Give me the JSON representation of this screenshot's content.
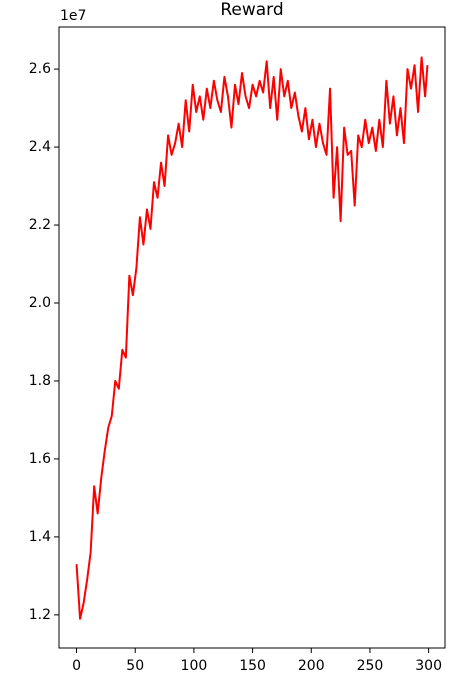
{
  "chart_data": {
    "type": "line",
    "title": "Reward",
    "y_offset_label": "1e7",
    "color": "#ff0000",
    "x": [
      0,
      3,
      6,
      9,
      12,
      15,
      18,
      21,
      24,
      27,
      30,
      33,
      36,
      39,
      42,
      45,
      48,
      51,
      54,
      57,
      60,
      63,
      66,
      69,
      72,
      75,
      78,
      81,
      84,
      87,
      90,
      93,
      96,
      99,
      102,
      105,
      108,
      111,
      114,
      117,
      120,
      123,
      126,
      129,
      132,
      135,
      138,
      141,
      144,
      147,
      150,
      153,
      156,
      159,
      162,
      165,
      168,
      171,
      174,
      177,
      180,
      183,
      186,
      189,
      192,
      195,
      198,
      201,
      204,
      207,
      210,
      213,
      216,
      219,
      222,
      225,
      228,
      231,
      234,
      237,
      240,
      243,
      246,
      249,
      252,
      255,
      258,
      261,
      264,
      267,
      270,
      273,
      276,
      279,
      282,
      285,
      288,
      291,
      294,
      297,
      299
    ],
    "values": [
      1.33,
      1.19,
      1.23,
      1.29,
      1.36,
      1.53,
      1.46,
      1.55,
      1.62,
      1.68,
      1.71,
      1.8,
      1.78,
      1.88,
      1.86,
      2.07,
      2.02,
      2.09,
      2.22,
      2.15,
      2.24,
      2.19,
      2.31,
      2.27,
      2.36,
      2.3,
      2.43,
      2.38,
      2.41,
      2.46,
      2.4,
      2.52,
      2.44,
      2.56,
      2.49,
      2.53,
      2.47,
      2.55,
      2.5,
      2.57,
      2.52,
      2.49,
      2.58,
      2.53,
      2.45,
      2.56,
      2.51,
      2.59,
      2.53,
      2.5,
      2.56,
      2.53,
      2.57,
      2.54,
      2.62,
      2.5,
      2.58,
      2.47,
      2.6,
      2.53,
      2.57,
      2.5,
      2.54,
      2.48,
      2.44,
      2.5,
      2.42,
      2.47,
      2.4,
      2.46,
      2.41,
      2.38,
      2.55,
      2.27,
      2.4,
      2.21,
      2.45,
      2.38,
      2.39,
      2.25,
      2.43,
      2.4,
      2.47,
      2.41,
      2.45,
      2.39,
      2.47,
      2.4,
      2.57,
      2.46,
      2.53,
      2.43,
      2.5,
      2.41,
      2.6,
      2.55,
      2.61,
      2.49,
      2.63,
      2.53,
      2.61
    ],
    "xlim": [
      -14.95,
      313.95
    ],
    "ylim": [
      1.115,
      2.708
    ],
    "xticks": [
      0,
      50,
      100,
      150,
      200,
      250,
      300
    ],
    "yticks": [
      1.2,
      1.4,
      1.6,
      1.8,
      {
        "value": 2,
        "label": "2.0"
      },
      2.2,
      2.4,
      2.6
    ]
  }
}
